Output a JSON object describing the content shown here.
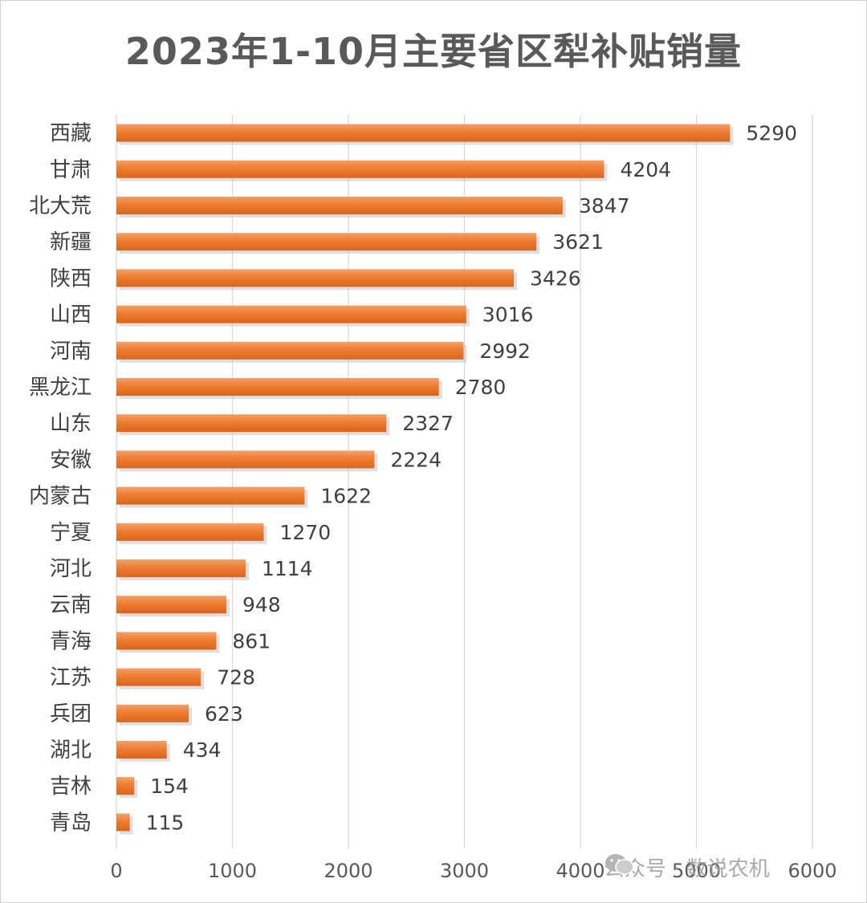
{
  "chart_data": {
    "type": "bar",
    "orientation": "horizontal",
    "title": "2023年1-10月主要省区犁补贴销量",
    "categories": [
      "西藏",
      "甘肃",
      "北大荒",
      "新疆",
      "陕西",
      "山西",
      "河南",
      "黑龙江",
      "山东",
      "安徽",
      "内蒙古",
      "宁夏",
      "河北",
      "云南",
      "青海",
      "江苏",
      "兵团",
      "湖北",
      "吉林",
      "青岛"
    ],
    "values": [
      5290,
      4204,
      3847,
      3621,
      3426,
      3016,
      2992,
      2780,
      2327,
      2224,
      1622,
      1270,
      1114,
      948,
      861,
      728,
      623,
      434,
      154,
      115
    ],
    "xlim": [
      0,
      6000
    ],
    "xticks": [
      0,
      1000,
      2000,
      3000,
      4000,
      5000,
      6000
    ],
    "grid": "vertical",
    "legend": "none",
    "bar_color": "#ED7D31",
    "data_labels": true
  },
  "watermark": {
    "icon": "wechat-icon",
    "text": "公众号 · 数说农机"
  }
}
